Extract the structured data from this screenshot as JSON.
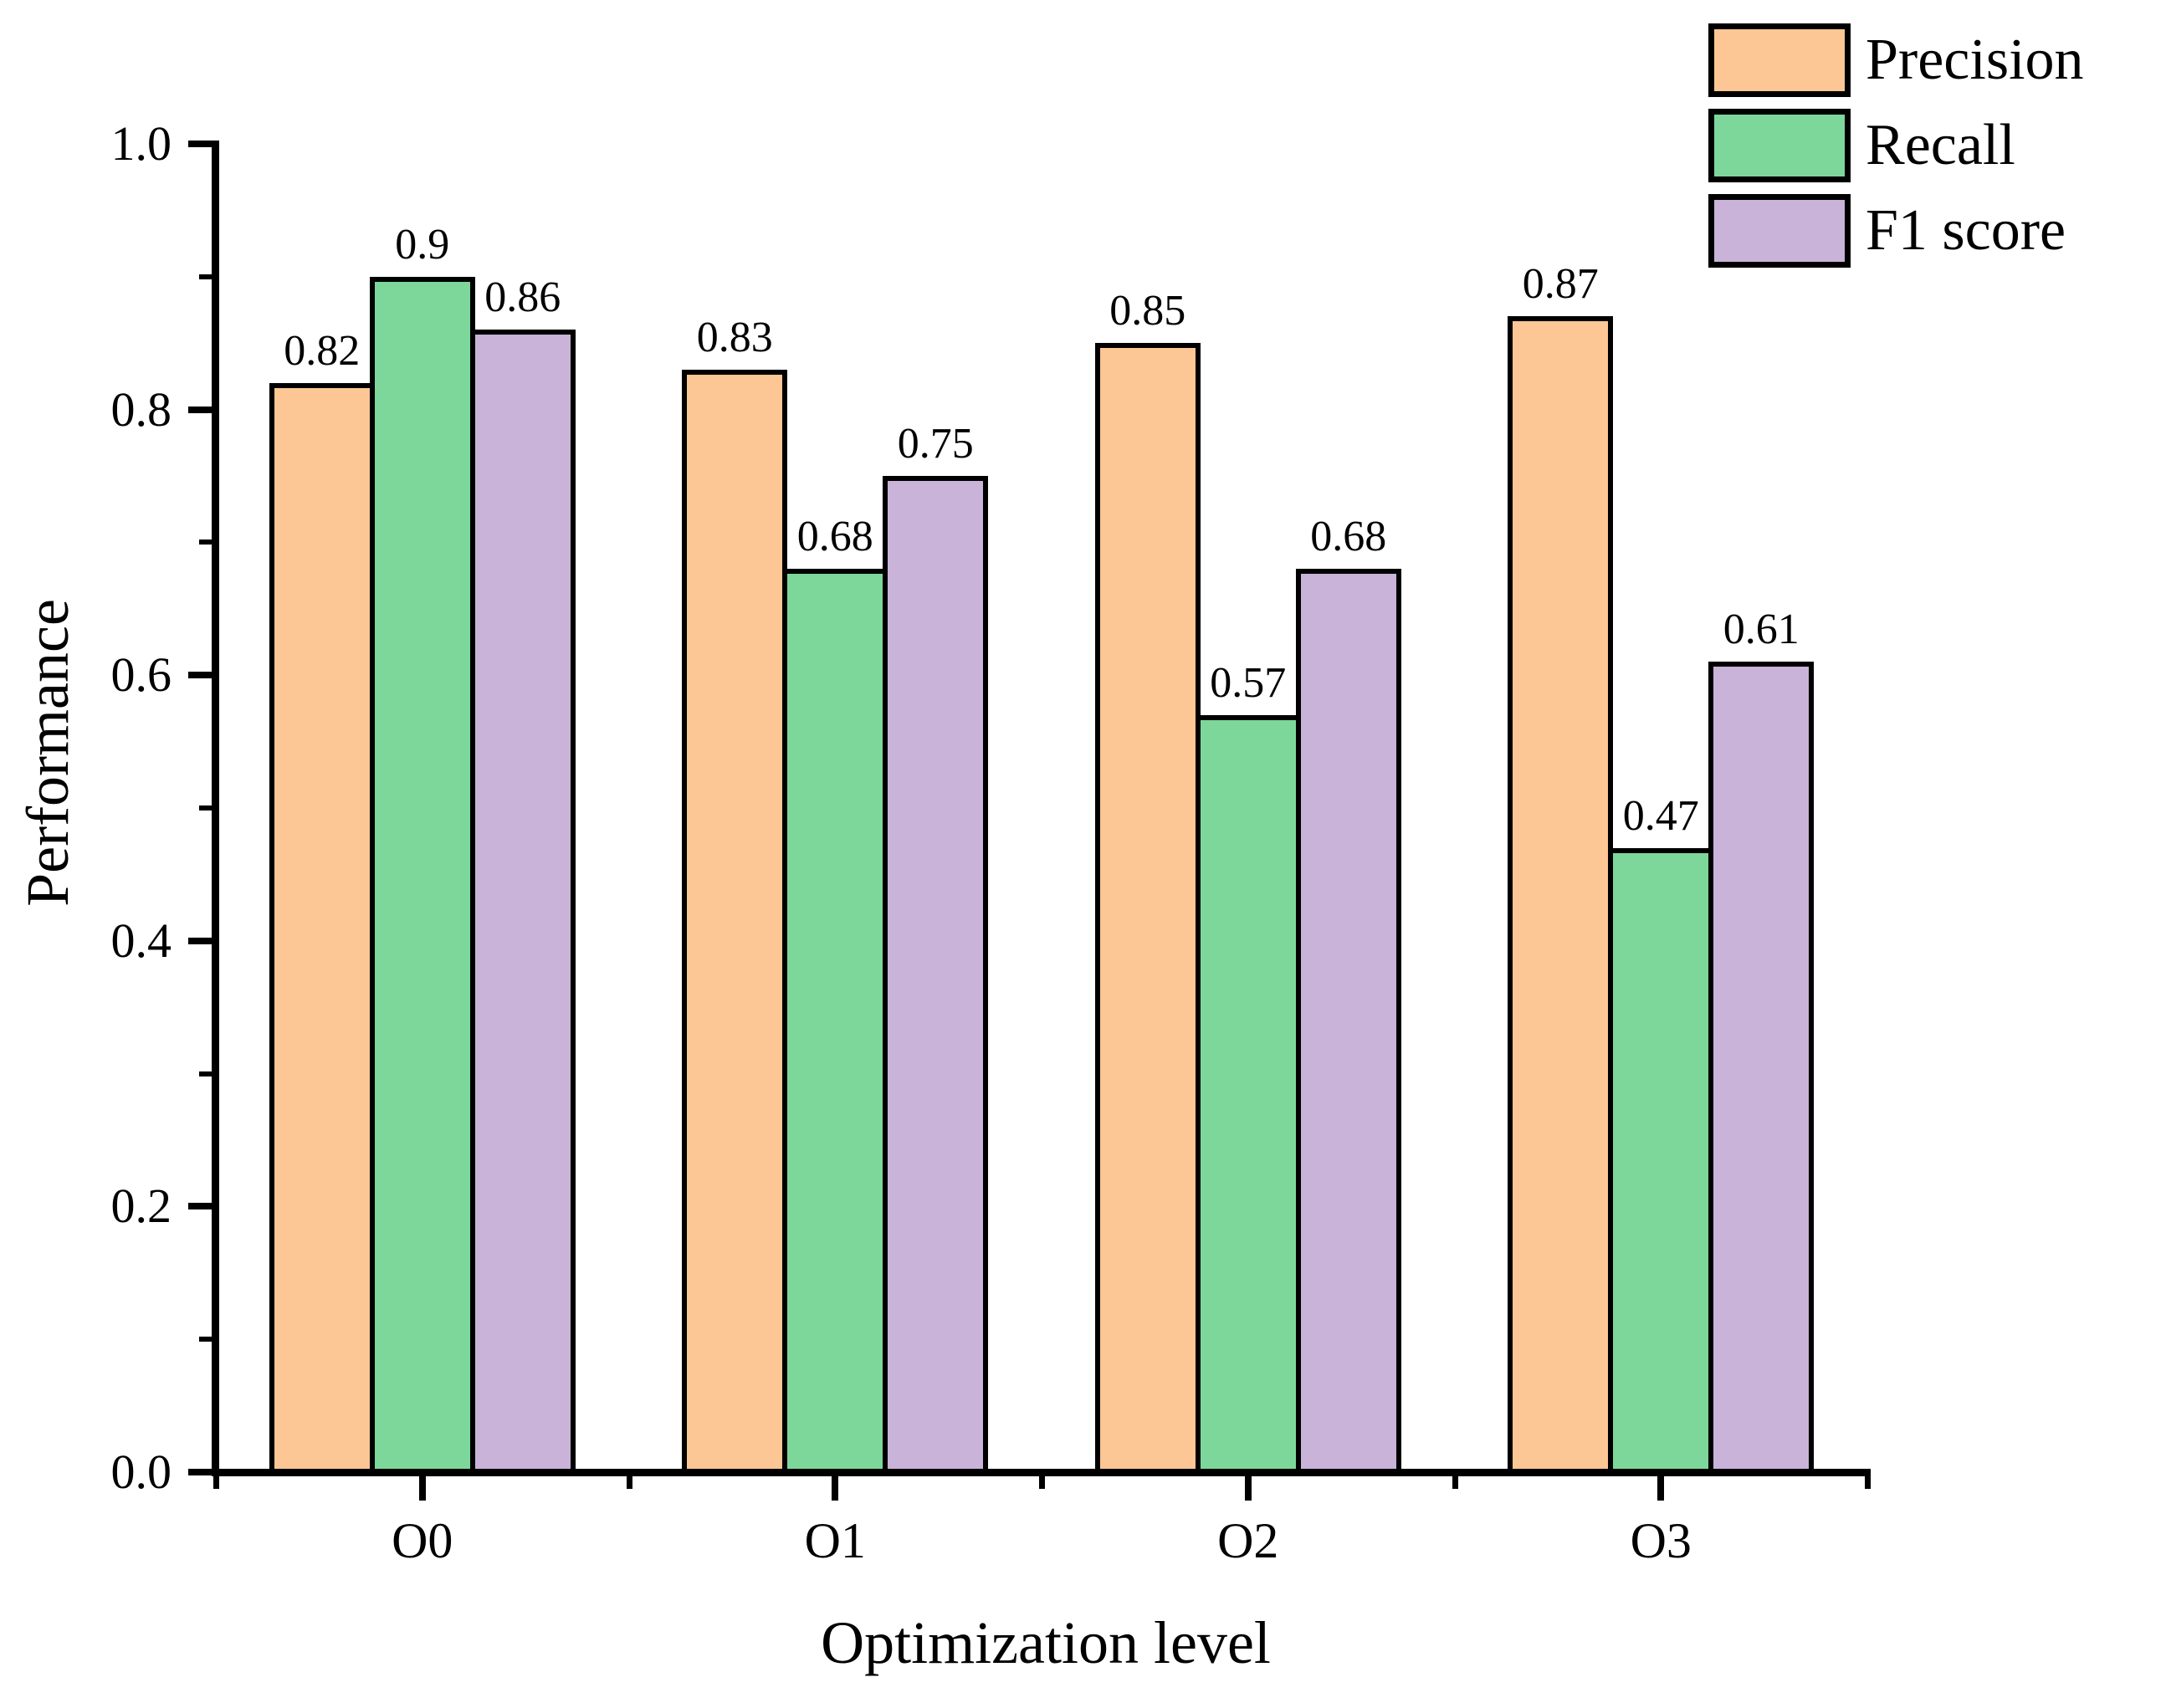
{
  "figure": {
    "background": "#FFFFFF",
    "edge_color": "#000000"
  },
  "chart_data": {
    "type": "bar",
    "title": "",
    "xlabel": "Optimization level",
    "ylabel": "Performance",
    "categories": [
      "O0",
      "O1",
      "O2",
      "O3"
    ],
    "series": [
      {
        "name": "Precision",
        "color": "#FCC795",
        "values": [
          0.82,
          0.83,
          0.85,
          0.87
        ]
      },
      {
        "name": "Recall",
        "color": "#7DD79B",
        "values": [
          0.9,
          0.68,
          0.57,
          0.47
        ]
      },
      {
        "name": "F1 score",
        "color": "#C9B3D9",
        "values": [
          0.86,
          0.75,
          0.68,
          0.61
        ]
      }
    ],
    "value_labels": [
      [
        "0.82",
        "0.83",
        "0.85",
        "0.87"
      ],
      [
        "0.9",
        "0.68",
        "0.57",
        "0.47"
      ],
      [
        "0.86",
        "0.75",
        "0.68",
        "0.61"
      ]
    ],
    "ylim": [
      0.0,
      1.0
    ],
    "yticks_major": [
      "0.0",
      "0.2",
      "0.4",
      "0.6",
      "0.8",
      "1.0"
    ],
    "yticks_minor": [
      0.1,
      0.3,
      0.5,
      0.7,
      0.9
    ],
    "grid": false,
    "legend_position": "top-right",
    "bar_edge_color": "#000000"
  }
}
